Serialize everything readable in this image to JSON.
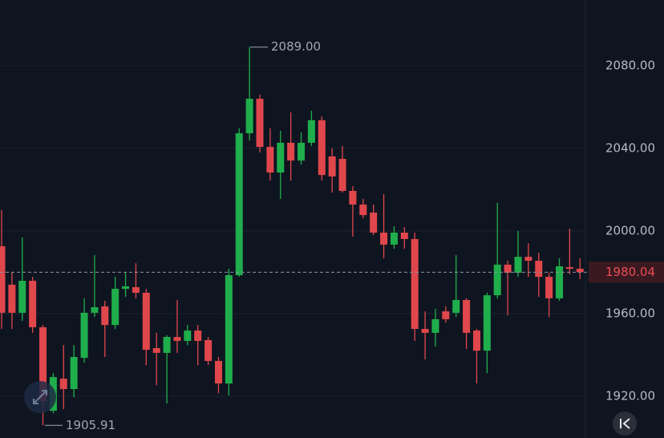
{
  "chart_data": {
    "type": "candlestick",
    "ylim": [
      1899.8,
      2111.8
    ],
    "yticks": [
      {
        "value": 1920,
        "label": "1920.00"
      },
      {
        "value": 1960,
        "label": "1960.00"
      },
      {
        "value": 2000,
        "label": "2000.00"
      },
      {
        "value": 2040,
        "label": "2040.00"
      },
      {
        "value": 2080,
        "label": "2080.00"
      }
    ],
    "grid": true,
    "up_color": "#1fae4b",
    "down_color": "#e0474c",
    "last_price": 1980.04,
    "high_annotation": {
      "value": 2089,
      "label": "2089.00"
    },
    "low_annotation": 1905.91,
    "open": [
      1992.6,
      1974.0,
      1960.4,
      1975.9,
      1953.4,
      1913.0,
      1928.5,
      1923.5,
      1938.6,
      1960.4,
      1963.5,
      1954.5,
      1972.0,
      1972.8,
      1970.1,
      1943.3,
      1941.0,
      1948.7,
      1946.8,
      1951.8,
      1947.2,
      1937.1,
      1926.2,
      1978.6,
      2047.3,
      2064.0,
      2040.7,
      2028.3,
      2042.7,
      2034.1,
      2042.7,
      2053.6,
      2036.1,
      2034.9,
      2019.4,
      2012.8,
      2008.9,
      1999.2,
      1993.4,
      1999.2,
      1996.1,
      1952.6,
      1950.7,
      1961.1,
      1960.4,
      1966.6,
      1951.8,
      1942.1,
      1968.9,
      1983.7,
      1979.8,
      1987.5,
      1985.6,
      1977.8,
      1967.4,
      1982.5,
      1981.7
    ],
    "high": [
      2010.1,
      1979.8,
      1996.9,
      1977.8,
      1954.5,
      1931.2,
      1944.8,
      1944.8,
      1967.4,
      1988.3,
      1966.2,
      1977.8,
      1979.8,
      1984.4,
      1972.0,
      1950.7,
      1949.5,
      1966.6,
      1954.5,
      1954.5,
      1948.7,
      1939.0,
      1981.7,
      2049.7,
      2089,
      2066.0,
      2049.7,
      2048.5,
      2057.4,
      2047.7,
      2058.2,
      2055.5,
      2040.0,
      2041.1,
      2021.7,
      2015.5,
      2012.8,
      2017.8,
      2002.3,
      2001.9,
      1999.2,
      1961.1,
      1962.3,
      1963.5,
      1988.3,
      1967.4,
      1952.6,
      1970.1,
      2013.6,
      1985.6,
      2000.0,
      1994.1,
      1989.5,
      1979.8,
      1986.8,
      2001.1,
      1986.8
    ],
    "low": [
      1952.6,
      1952.6,
      1956.5,
      1950.7,
      1905.91,
      1911.8,
      1913.8,
      1919.6,
      1936.3,
      1958.4,
      1939.0,
      1952.6,
      1968.1,
      1967.4,
      1935.1,
      1925.4,
      1916.5,
      1941.0,
      1944.8,
      1935.1,
      1935.1,
      1921.5,
      1920.4,
      1977.8,
      2043.8,
      2038.0,
      2024.4,
      2015.5,
      2024.4,
      2032.2,
      2041.1,
      2024.4,
      2018.6,
      2018.6,
      1997.3,
      2006.2,
      1998.0,
      1986.8,
      1991.4,
      1991.4,
      1946.8,
      1937.8,
      1944.1,
      1955.7,
      1958.4,
      1942.9,
      1926.2,
      1931.2,
      1967.4,
      1959.2,
      1977.8,
      1977.8,
      1968.1,
      1958.4,
      1966.2,
      1979.0,
      1976.7
    ],
    "close": [
      1960.4,
      1960.4,
      1975.9,
      1953.4,
      1917.6,
      1929.3,
      1923.5,
      1939.0,
      1960.4,
      1963.1,
      1954.5,
      1972.0,
      1973.2,
      1970.1,
      1942.5,
      1941.0,
      1948.7,
      1946.8,
      1951.8,
      1946.8,
      1937.1,
      1926.2,
      1978.6,
      2047.3,
      2064.0,
      2040.7,
      2028.3,
      2042.7,
      2034.1,
      2042.7,
      2053.6,
      2027.1,
      2026.4,
      2019.4,
      2012.8,
      2007.7,
      1999.2,
      1993.4,
      1999.2,
      1996.1,
      1952.6,
      1950.7,
      1957.3,
      1957.3,
      1966.6,
      1950.7,
      1942.1,
      1968.9,
      1983.7,
      1979.8,
      1987.5,
      1985.6,
      1977.8,
      1967.4,
      1982.9,
      1981.7,
      1980.04
    ]
  }
}
